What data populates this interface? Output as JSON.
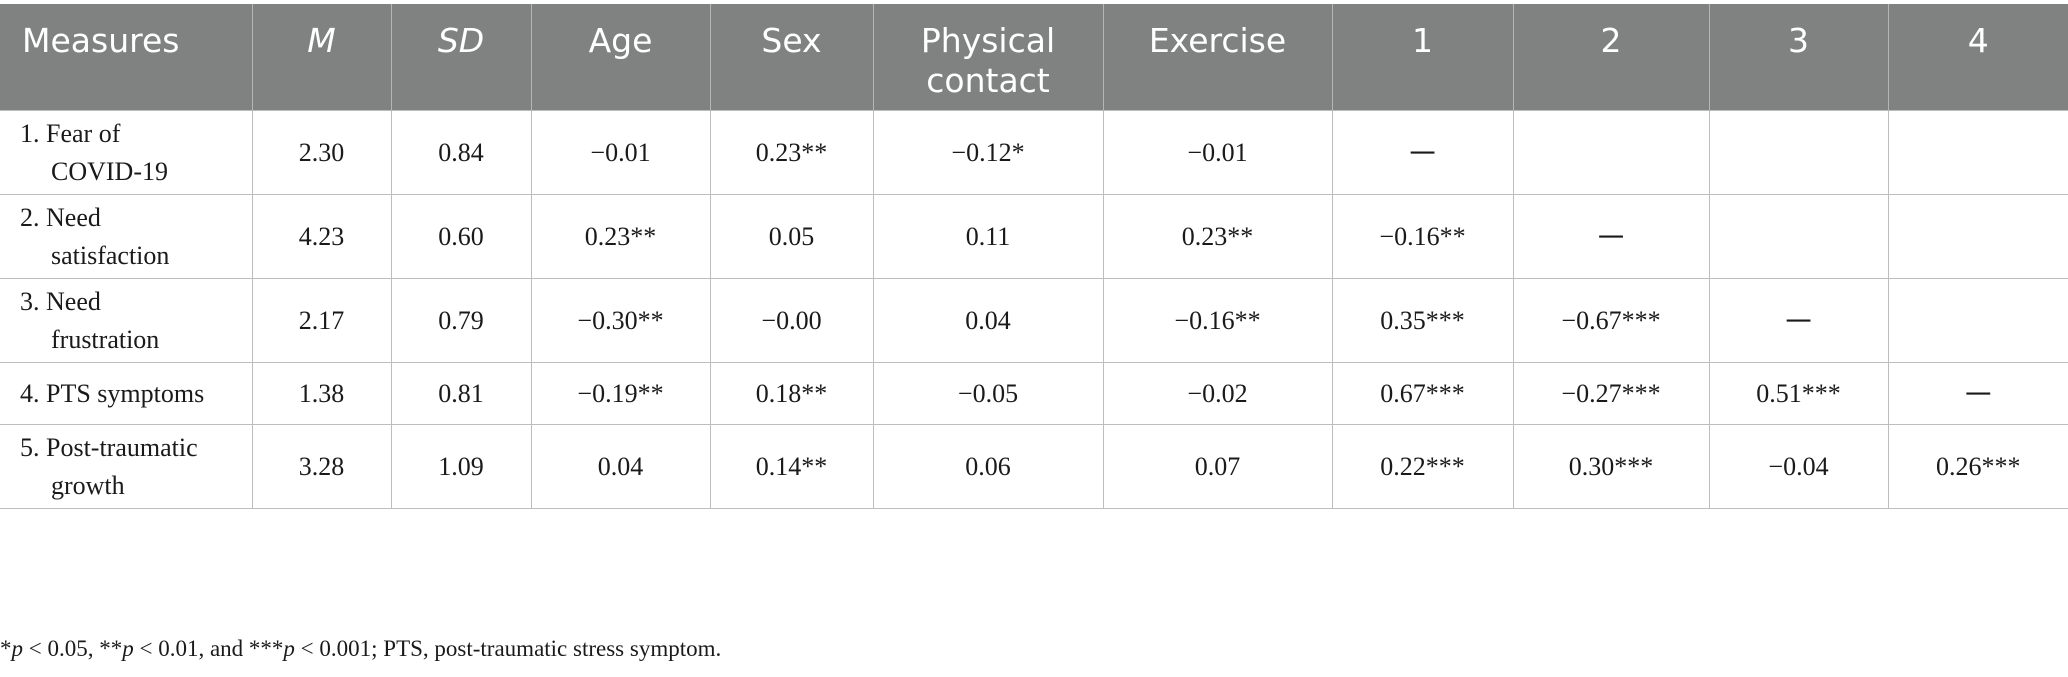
{
  "table": {
    "headers": [
      "Measures",
      "M",
      "SD",
      "Age",
      "Sex",
      "Physical contact",
      "Exercise",
      "1",
      "2",
      "3",
      "4"
    ],
    "rows": [
      {
        "label_line1": "1. Fear of",
        "label_line2": "COVID-19",
        "cells": [
          "2.30",
          "0.84",
          "−0.01",
          "0.23**",
          "−0.12*",
          "−0.01",
          "一",
          "",
          "",
          ""
        ]
      },
      {
        "label_line1": "2. Need",
        "label_line2": "satisfaction",
        "cells": [
          "4.23",
          "0.60",
          "0.23**",
          "0.05",
          "0.11",
          "0.23**",
          "−0.16**",
          "一",
          "",
          ""
        ]
      },
      {
        "label_line1": "3. Need",
        "label_line2": "frustration",
        "cells": [
          "2.17",
          "0.79",
          "−0.30**",
          "−0.00",
          "0.04",
          "−0.16**",
          "0.35***",
          "−0.67***",
          "一",
          ""
        ]
      },
      {
        "label_line1": "4. PTS symptoms",
        "label_line2": "",
        "cells": [
          "1.38",
          "0.81",
          "−0.19**",
          "0.18**",
          "−0.05",
          "−0.02",
          "0.67***",
          "−0.27***",
          "0.51***",
          "一"
        ]
      },
      {
        "label_line1": "5. Post-traumatic",
        "label_line2": "growth",
        "cells": [
          "3.28",
          "1.09",
          "0.04",
          "0.14**",
          "0.06",
          "0.07",
          "0.22***",
          "0.30***",
          "−0.04",
          "0.26***"
        ]
      }
    ]
  },
  "note": {
    "star1": "*",
    "p1": "p",
    "t1": " < 0.05, ",
    "star2": "**",
    "p2": "p",
    "t2": " < 0.01, and ",
    "star3": "***",
    "p3": "p",
    "t3": " < 0.001; PTS, post-traumatic stress symptom."
  }
}
